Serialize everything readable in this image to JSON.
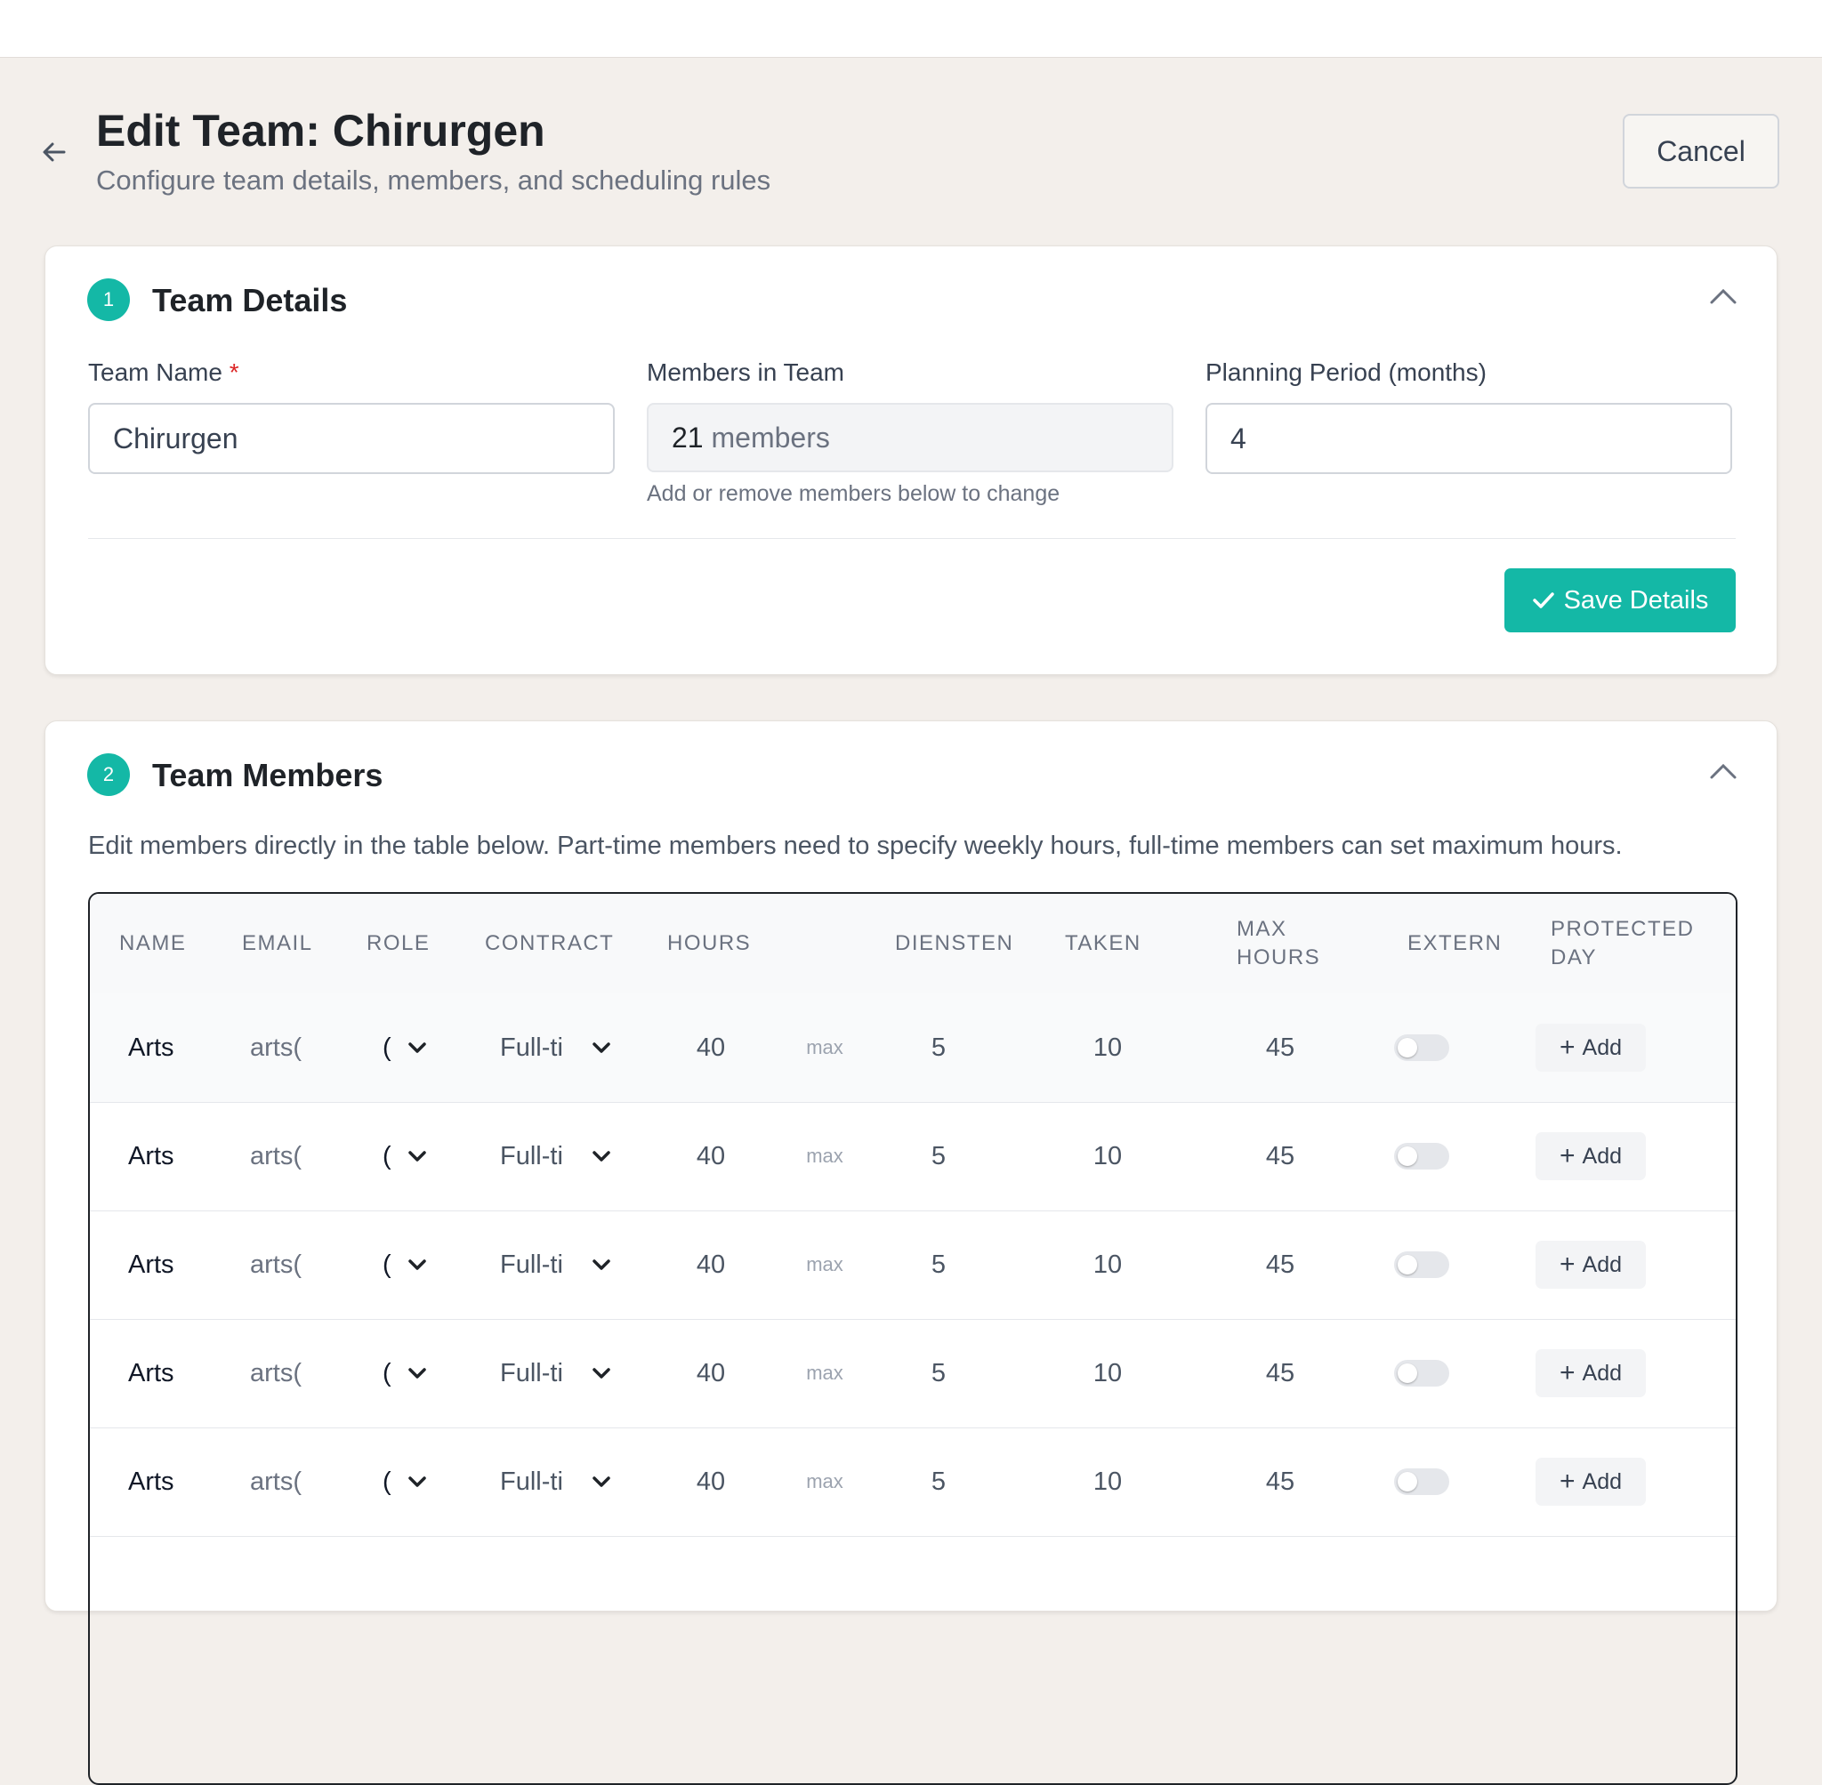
{
  "header": {
    "title": "Edit Team: Chirurgen",
    "subtitle": "Configure team details, members, and scheduling rules",
    "cancel": "Cancel"
  },
  "team_details": {
    "step": "1",
    "title": "Team Details",
    "fields": [
      {
        "label": "Team Name",
        "required": "*",
        "value": "Chirurgen"
      },
      {
        "label": "Members in Team",
        "value": 21,
        "unit": "members",
        "help": "Add or remove members below to change"
      },
      {
        "label": "Planning Period (months)",
        "value": 4
      }
    ],
    "save": "Save Details"
  },
  "team_members": {
    "step": "2",
    "title": "Team Members",
    "description": "Edit members directly in the table below. Part-time members need to specify weekly hours, full-time members can set maximum hours.",
    "table": {
      "columns": [
        "NAME",
        "EMAIL",
        "ROLE",
        "CONTRACT",
        "HOURS",
        "DIENSTEN",
        "TAKEN",
        "MAX HOURS",
        "EXTERN",
        "PROTECTED DAY"
      ],
      "rows": [
        {
          "name": "Arts",
          "email": "arts(",
          "role": "(",
          "contract": "Full-ti",
          "hours": 40,
          "hours_note": "max",
          "diensten": 5,
          "taken": 10,
          "max_hours": 45,
          "extern": false,
          "protected_day": "Add"
        },
        {
          "name": "Arts",
          "email": "arts(",
          "role": "(",
          "contract": "Full-ti",
          "hours": 40,
          "hours_note": "max",
          "diensten": 5,
          "taken": 10,
          "max_hours": 45,
          "extern": false,
          "protected_day": "Add"
        },
        {
          "name": "Arts",
          "email": "arts(",
          "role": "(",
          "contract": "Full-ti",
          "hours": 40,
          "hours_note": "max",
          "diensten": 5,
          "taken": 10,
          "max_hours": 45,
          "extern": false,
          "protected_day": "Add"
        },
        {
          "name": "Arts",
          "email": "arts(",
          "role": "(",
          "contract": "Full-ti",
          "hours": 40,
          "hours_note": "max",
          "diensten": 5,
          "taken": 10,
          "max_hours": 45,
          "extern": false,
          "protected_day": "Add"
        },
        {
          "name": "Arts",
          "email": "arts(",
          "role": "(",
          "contract": "Full-ti",
          "hours": 40,
          "hours_note": "max",
          "diensten": 5,
          "taken": 10,
          "max_hours": 45,
          "extern": false,
          "protected_day": "Add"
        }
      ]
    }
  }
}
